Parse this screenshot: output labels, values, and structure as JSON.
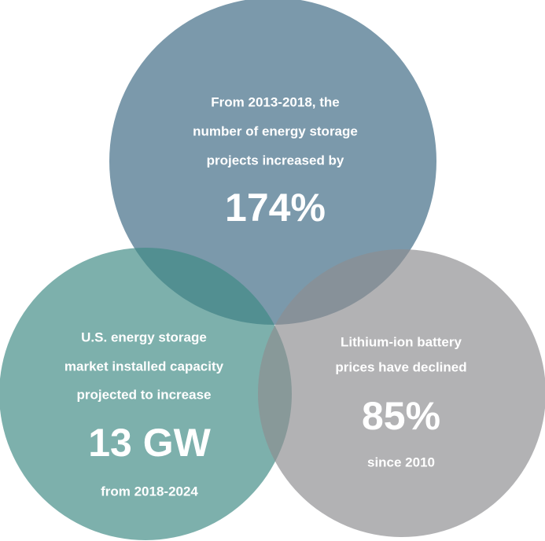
{
  "circles": [
    {
      "lines": [
        "From 2013-2018,  the",
        "number of energy storage",
        "projects increased by"
      ],
      "highlight": "174%"
    },
    {
      "lines": [
        "U.S. energy storage",
        "market installed capacity",
        "projected to increase"
      ],
      "highlight": "13 GW",
      "footer": "from 2018-2024"
    },
    {
      "lines": [
        "Lithium-ion battery",
        "prices have declined"
      ],
      "highlight": "85%",
      "footer": "since 2010"
    }
  ]
}
